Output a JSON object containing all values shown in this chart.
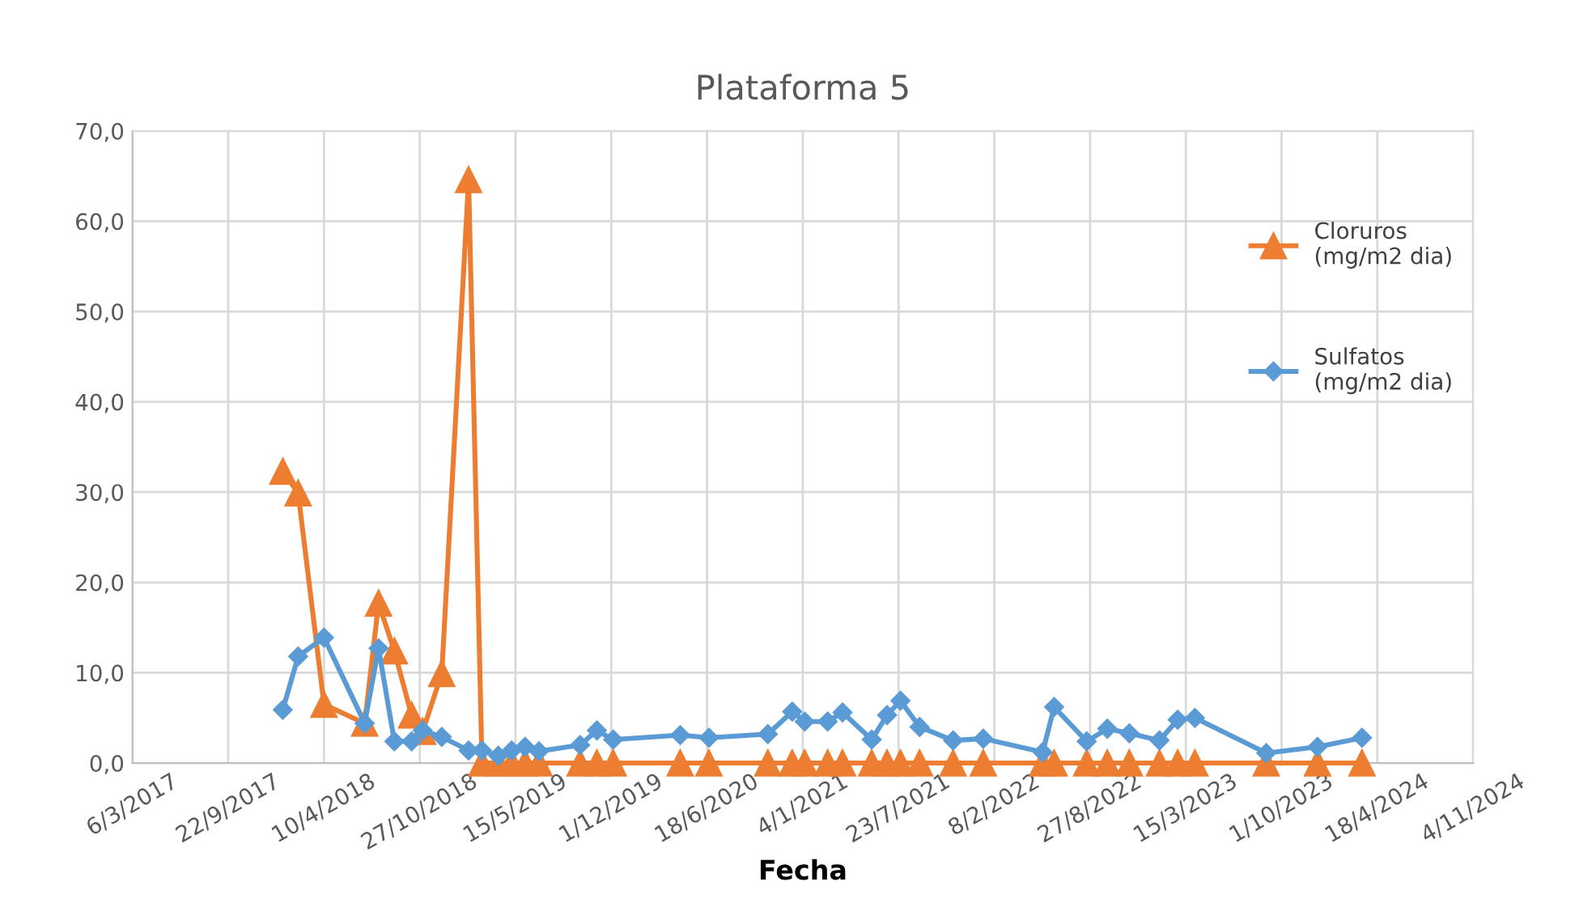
{
  "chart_data": {
    "type": "line",
    "title": "Plataforma 5",
    "xlabel": "Fecha",
    "x": [
      "2018-01-14",
      "2018-02-15",
      "2018-04-10",
      "2018-07-04",
      "2018-08-02",
      "2018-09-04",
      "2018-10-10",
      "2018-11-02",
      "2018-12-12",
      "2019-02-06",
      "2019-03-06",
      "2019-04-09",
      "2019-05-07",
      "2019-06-04",
      "2019-07-03",
      "2019-09-27",
      "2019-11-01",
      "2019-12-05",
      "2020-04-23",
      "2020-06-22",
      "2020-10-23",
      "2020-12-13",
      "2021-01-08",
      "2021-02-25",
      "2021-03-28",
      "2021-05-28",
      "2021-06-29",
      "2021-07-27",
      "2021-09-05",
      "2021-11-14",
      "2022-01-16",
      "2022-05-20",
      "2022-06-13",
      "2022-08-20",
      "2022-10-02",
      "2022-11-17",
      "2023-01-19",
      "2023-02-26",
      "2023-04-03",
      "2023-08-30",
      "2023-12-15",
      "2024-03-17"
    ],
    "series": [
      {
        "name": "Cloruros\n(mg/m2 dia)",
        "color": "#ed7d31",
        "marker": "triangle",
        "values": [
          32.3,
          29.9,
          6.5,
          4.4,
          17.7,
          12.4,
          5.3,
          3.5,
          9.9,
          64.6,
          0,
          0,
          0,
          0,
          0,
          0,
          0,
          0,
          0,
          0,
          0,
          0,
          0,
          0,
          0,
          0,
          0,
          0,
          0,
          0,
          0,
          0,
          0,
          0,
          0,
          0,
          0,
          0,
          0,
          0,
          0,
          0
        ]
      },
      {
        "name": "Sulfatos\n(mg/m2 dia)",
        "color": "#5b9bd5",
        "marker": "diamond",
        "values": [
          5.9,
          11.8,
          13.9,
          4.4,
          12.7,
          2.4,
          2.4,
          3.6,
          2.9,
          1.4,
          1.4,
          0.8,
          1.4,
          1.8,
          1.3,
          2.0,
          3.6,
          2.6,
          3.1,
          2.8,
          3.2,
          5.7,
          4.6,
          4.6,
          5.6,
          2.6,
          5.3,
          6.9,
          4.0,
          2.5,
          2.7,
          1.2,
          6.2,
          2.4,
          3.8,
          3.3,
          2.5,
          4.8,
          5.0,
          1.1,
          1.8,
          2.8
        ]
      }
    ],
    "xlim": [
      "2017-03-06",
      "2024-11-04"
    ],
    "xticks": [
      {
        "value": "2017-03-06",
        "label": "6/3/2017"
      },
      {
        "value": "2017-09-22",
        "label": "22/9/2017"
      },
      {
        "value": "2018-04-10",
        "label": "10/4/2018"
      },
      {
        "value": "2018-10-27",
        "label": "27/10/2018"
      },
      {
        "value": "2019-05-15",
        "label": "15/5/2019"
      },
      {
        "value": "2019-12-01",
        "label": "1/12/2019"
      },
      {
        "value": "2020-06-18",
        "label": "18/6/2020"
      },
      {
        "value": "2021-01-04",
        "label": "4/1/2021"
      },
      {
        "value": "2021-07-23",
        "label": "23/7/2021"
      },
      {
        "value": "2022-02-08",
        "label": "8/2/2022"
      },
      {
        "value": "2022-08-27",
        "label": "27/8/2022"
      },
      {
        "value": "2023-03-15",
        "label": "15/3/2023"
      },
      {
        "value": "2023-10-01",
        "label": "1/10/2023"
      },
      {
        "value": "2024-04-18",
        "label": "18/4/2024"
      },
      {
        "value": "2024-11-04",
        "label": "4/11/2024"
      }
    ],
    "ylim": [
      0,
      70
    ],
    "yticks": [
      {
        "value": 0,
        "label": "0,0"
      },
      {
        "value": 10,
        "label": "10,0"
      },
      {
        "value": 20,
        "label": "20,0"
      },
      {
        "value": 30,
        "label": "30,0"
      },
      {
        "value": 40,
        "label": "40,0"
      },
      {
        "value": 50,
        "label": "50,0"
      },
      {
        "value": 60,
        "label": "60,0"
      },
      {
        "value": 70,
        "label": "70,0"
      }
    ],
    "grid": true,
    "legend": "right",
    "line_style": "solid"
  }
}
